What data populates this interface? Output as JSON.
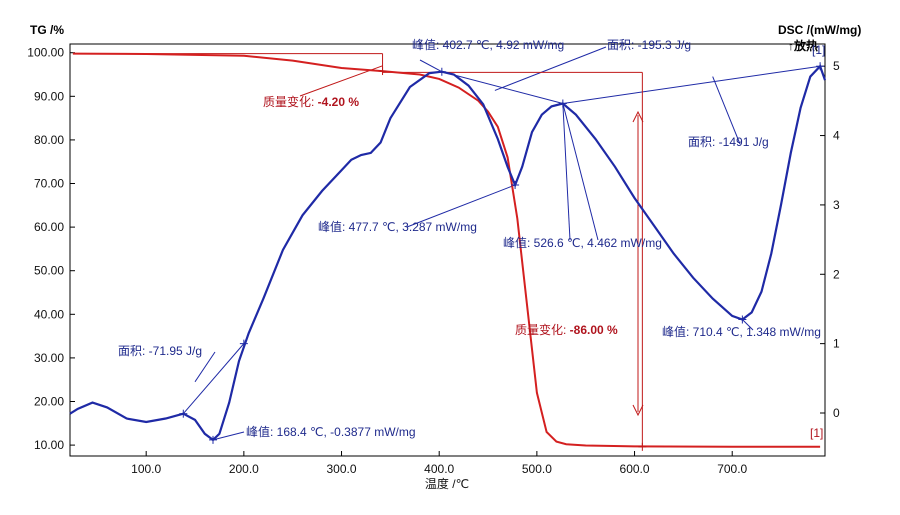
{
  "chart_data": {
    "type": "line",
    "title": "",
    "xlabel": "温度 /℃",
    "ylabel_left": "TG /%",
    "ylabel_right": "DSC /(mW/mg)",
    "exo_label": "↑放热",
    "xlim": [
      22,
      795
    ],
    "ylim_left": [
      7.5,
      102
    ],
    "ylim_right": [
      -0.62,
      5.32
    ],
    "x_ticks": [
      100,
      200,
      300,
      400,
      500,
      600,
      700
    ],
    "x_tick_labels": [
      "100.0",
      "200.0",
      "300.0",
      "400.0",
      "500.0",
      "600.0",
      "700.0"
    ],
    "y_left_ticks": [
      10,
      20,
      30,
      40,
      50,
      60,
      70,
      80,
      90,
      100
    ],
    "y_left_tick_labels": [
      "10.00",
      "20.00",
      "30.00",
      "40.00",
      "50.00",
      "60.00",
      "70.00",
      "80.00",
      "90.00",
      "100.00"
    ],
    "y_right_ticks": [
      0,
      1,
      2,
      3,
      4,
      5
    ],
    "y_right_tick_labels": [
      "0",
      "1",
      "2",
      "3",
      "4",
      "5"
    ],
    "grid": false,
    "series": [
      {
        "name": "TG",
        "axis": "left",
        "color": "#d42020",
        "x": [
          25,
          100,
          200,
          250,
          300,
          340,
          380,
          400,
          420,
          440,
          450,
          460,
          470,
          480,
          490,
          500,
          510,
          520,
          530,
          550,
          600,
          700,
          790
        ],
        "y": [
          99.8,
          99.7,
          99.3,
          98.2,
          96.5,
          95.8,
          95.0,
          94.0,
          92.0,
          89.0,
          86.5,
          83.0,
          76.0,
          62.0,
          42.0,
          22.0,
          13.0,
          10.8,
          10.2,
          9.9,
          9.7,
          9.6,
          9.6
        ]
      },
      {
        "name": "DSC",
        "axis": "right",
        "color": "#1f2aa6",
        "x": [
          22,
          30,
          45,
          60,
          80,
          100,
          120,
          138,
          150,
          160,
          168.4,
          175,
          185,
          195,
          205,
          220,
          240,
          260,
          280,
          300,
          310,
          320,
          330,
          340,
          350,
          370,
          390,
          402.7,
          415,
          430,
          445,
          460,
          470,
          477.7,
          485,
          495,
          505,
          515,
          526.6,
          540,
          560,
          580,
          600,
          620,
          640,
          660,
          680,
          700,
          710.4,
          720,
          730,
          740,
          750,
          760,
          770,
          780,
          790,
          795
        ],
        "y": [
          -0.01,
          0.06,
          0.15,
          0.08,
          -0.08,
          -0.13,
          -0.08,
          -0.01,
          -0.1,
          -0.3,
          -0.3877,
          -0.3,
          0.15,
          0.75,
          1.15,
          1.65,
          2.35,
          2.85,
          3.2,
          3.5,
          3.65,
          3.72,
          3.75,
          3.9,
          4.25,
          4.7,
          4.9,
          4.92,
          4.88,
          4.72,
          4.45,
          3.95,
          3.55,
          3.287,
          3.55,
          4.05,
          4.3,
          4.42,
          4.462,
          4.3,
          3.95,
          3.55,
          3.1,
          2.7,
          2.3,
          1.95,
          1.65,
          1.4,
          1.348,
          1.45,
          1.75,
          2.3,
          3.0,
          3.75,
          4.4,
          4.85,
          5.0,
          4.8
        ]
      }
    ],
    "annotations": [
      {
        "prefix": "峰值: ",
        "value": "168.4 ℃, -0.3877 mW/mg"
      },
      {
        "prefix": "面积: ",
        "value": "-71.95 J/g"
      },
      {
        "prefix": "峰值: ",
        "value": "402.7 ℃, 4.92 mW/mg"
      },
      {
        "prefix": "面积: ",
        "value": "-195.3 J/g"
      },
      {
        "prefix": "峰值: ",
        "value": "477.7 ℃, 3.287 mW/mg"
      },
      {
        "prefix": "峰值: ",
        "value": "526.6 ℃, 4.462 mW/mg"
      },
      {
        "prefix": "面积: ",
        "value": "-1491 J/g"
      },
      {
        "prefix": "峰值: ",
        "value": "710.4 ℃, 1.348 mW/mg"
      },
      {
        "prefix": "质量变化: ",
        "value": "-4.20 %"
      },
      {
        "prefix": "质量变化: ",
        "value": "-86.00 %"
      }
    ],
    "curve_markers": [
      "[1]",
      "[1]"
    ]
  }
}
